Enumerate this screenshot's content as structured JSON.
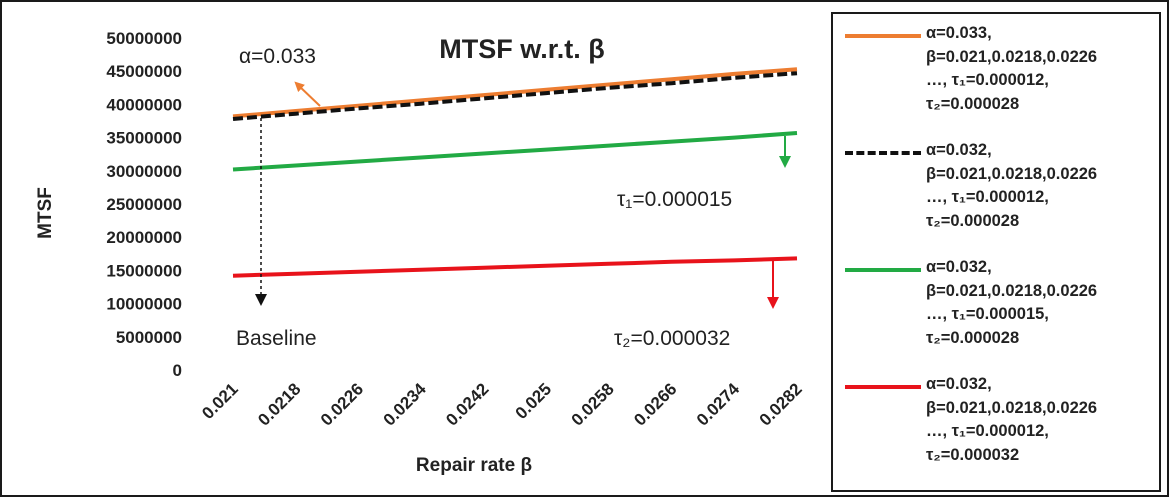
{
  "chart_data": {
    "type": "line",
    "title": "MTSF w.r.t. β",
    "xlabel": "Repair rate β",
    "ylabel": "MTSF",
    "categories": [
      "0.021",
      "0.0218",
      "0.0226",
      "0.0234",
      "0.0242",
      "0.025",
      "0.0258",
      "0.0266",
      "0.0274",
      "0.0282"
    ],
    "yticks": [
      "0",
      "5000000",
      "10000000",
      "15000000",
      "20000000",
      "25000000",
      "30000000",
      "35000000",
      "40000000",
      "45000000",
      "50000000"
    ],
    "ylim": [
      0,
      50000000
    ],
    "grid": false,
    "legend_position": "right",
    "series": [
      {
        "name": "α=0.033, β=0.021,0.0218,0.0226 …, τ₁=0.000012, τ₂=0.000028",
        "legend_lines": [
          "α=0.033,",
          "β=0.021,0.0218,0.0226",
          "…, τ₁=0.000012,",
          "τ₂=0.000028"
        ],
        "color": "#ED7D31",
        "dash": "solid",
        "values": [
          38200000,
          39000000,
          39800000,
          40600000,
          41400000,
          42200000,
          43000000,
          43800000,
          44600000,
          45300000
        ]
      },
      {
        "name": "α=0.032, β=0.021,0.0218,0.0226 …, τ₁=0.000012, τ₂=0.000028",
        "legend_lines": [
          "α=0.032,",
          "β=0.021,0.0218,0.0226",
          "…, τ₁=0.000012,",
          "τ₂=0.000028"
        ],
        "color": "#111111",
        "dash": "dashed",
        "values": [
          37800000,
          38600000,
          39400000,
          40100000,
          40900000,
          41700000,
          42500000,
          43200000,
          44000000,
          44700000
        ]
      },
      {
        "name": "α=0.032, β=0.021,0.0218,0.0226 …, τ₁=0.000015, τ₂=0.000028",
        "legend_lines": [
          "α=0.032,",
          "β=0.021,0.0218,0.0226",
          "…, τ₁=0.000015,",
          "τ₂=0.000028"
        ],
        "color": "#22AA44",
        "dash": "solid",
        "values": [
          30200000,
          30800000,
          31400000,
          32000000,
          32600000,
          33200000,
          33800000,
          34400000,
          35000000,
          35700000
        ]
      },
      {
        "name": "α=0.032, β=0.021,0.0218,0.0226 …, τ₁=0.000012, τ₂=0.000032",
        "legend_lines": [
          "α=0.032,",
          "β=0.021,0.0218,0.0226",
          "…, τ₁=0.000012,",
          "τ₂=0.000032"
        ],
        "color": "#E8131B",
        "dash": "solid",
        "values": [
          14200000,
          14500000,
          14800000,
          15100000,
          15400000,
          15700000,
          16000000,
          16300000,
          16500000,
          16800000
        ]
      }
    ],
    "annotations": [
      {
        "id": "alpha",
        "text": "α=0.033",
        "color": "#ED7D31"
      },
      {
        "id": "tau1",
        "text": "τ₁=0.000015",
        "color": "#22AA44"
      },
      {
        "id": "baseline",
        "text": "Baseline",
        "color": "#111111"
      },
      {
        "id": "tau2",
        "text": "τ₂=0.000032",
        "color": "#E8131B"
      }
    ]
  }
}
